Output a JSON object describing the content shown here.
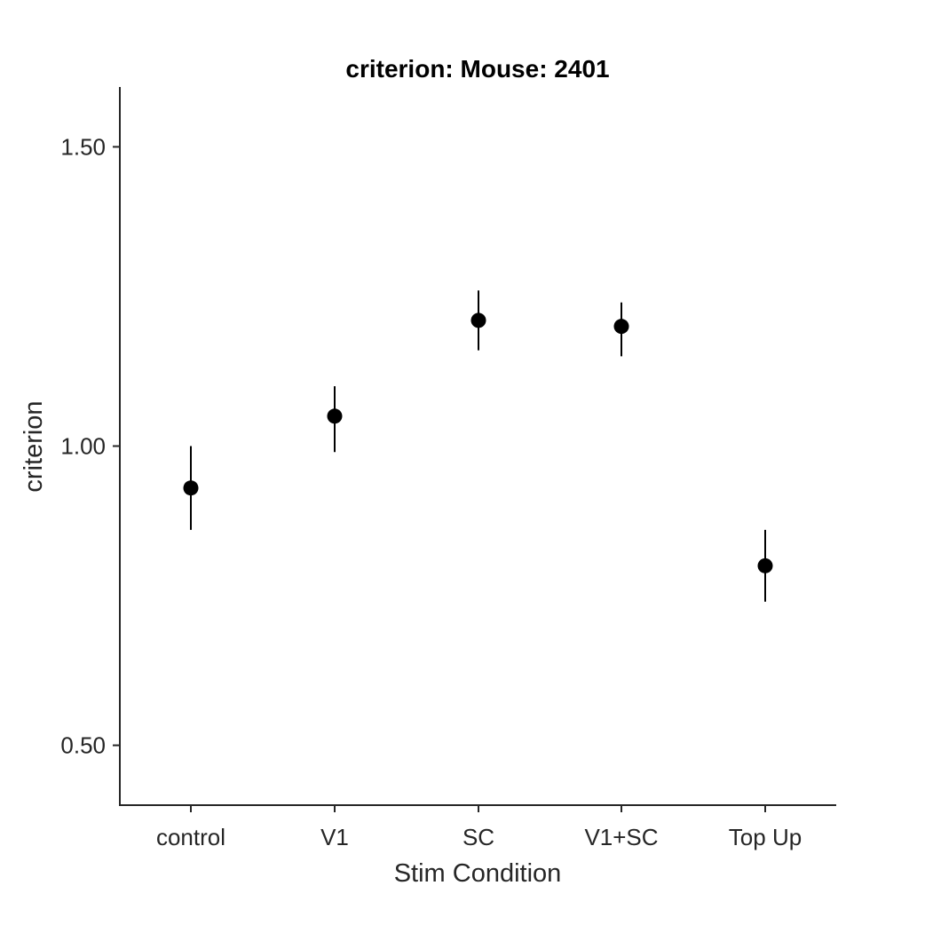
{
  "chart_data": {
    "type": "scatter",
    "title": "criterion: Mouse: 2401",
    "xlabel": "Stim Condition",
    "ylabel": "criterion",
    "categories": [
      "control",
      "V1",
      "SC",
      "V1+SC",
      "Top Up"
    ],
    "series": [
      {
        "values": [
          0.93,
          1.05,
          1.21,
          1.2,
          0.8
        ],
        "error_low": [
          0.86,
          0.99,
          1.16,
          1.15,
          0.74
        ],
        "error_high": [
          1.0,
          1.1,
          1.26,
          1.24,
          0.86
        ]
      }
    ],
    "ylim": [
      0.4,
      1.6
    ],
    "yticks": [
      0.5,
      1.0,
      1.5
    ],
    "ytick_labels": [
      "0.50",
      "1.00",
      "1.50"
    ],
    "grid": false,
    "legend": false,
    "colors": {
      "marker": "#000000",
      "axis": "#262626"
    }
  }
}
